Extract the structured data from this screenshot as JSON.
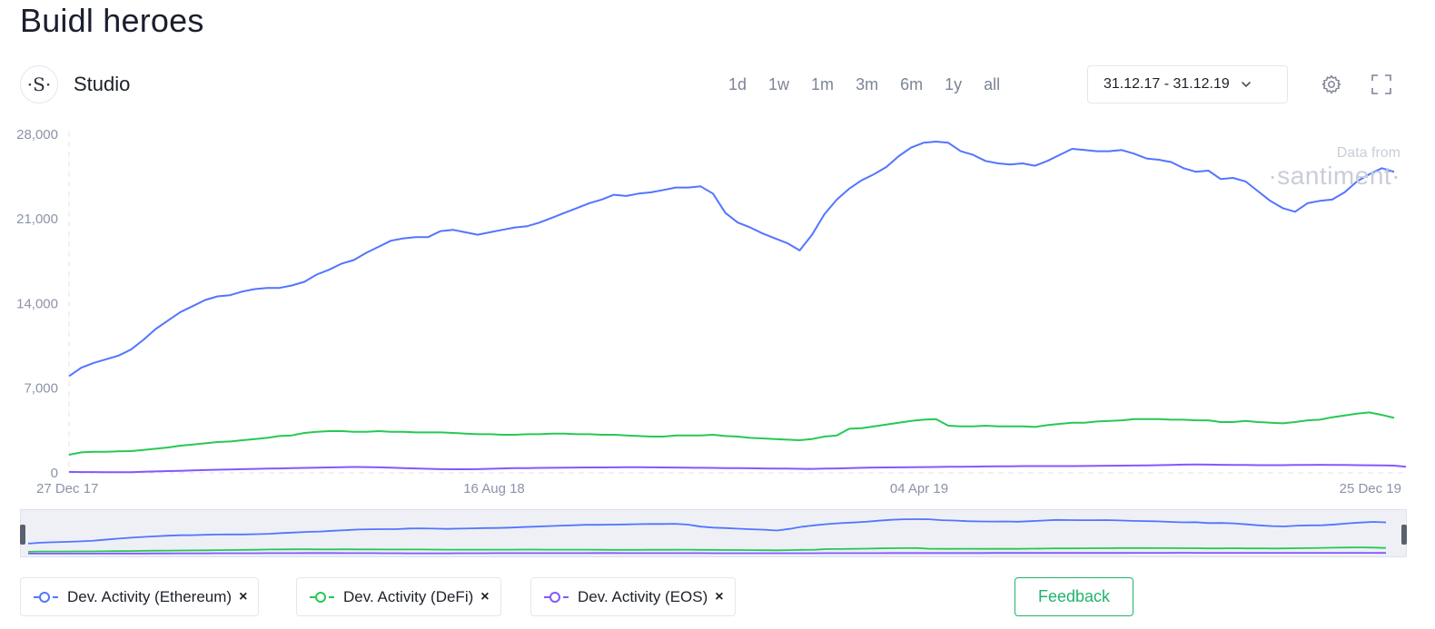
{
  "page": {
    "title": "Buidl heroes"
  },
  "studio": {
    "logo": "·S·",
    "label": "Studio"
  },
  "ranges": [
    "1d",
    "1w",
    "1m",
    "3m",
    "6m",
    "1y",
    "all"
  ],
  "date_picker": {
    "value": "31.12.17 - 31.12.19"
  },
  "toolbar": {
    "settings_icon": "gear-icon",
    "fullscreen_icon": "fullscreen-icon"
  },
  "watermark": {
    "line1": "Data from",
    "line2": "·santiment·"
  },
  "legend": [
    {
      "label": "Dev. Activity (Ethereum)",
      "color": "#5275ff",
      "close": "×"
    },
    {
      "label": "Dev. Activity (DeFi)",
      "color": "#26c953",
      "close": "×"
    },
    {
      "label": "Dev. Activity (EOS)",
      "color": "#8358ff",
      "close": "×"
    }
  ],
  "feedback": {
    "label": "Feedback"
  },
  "chart_data": {
    "type": "line",
    "x_labels": [
      "27 Dec 17",
      "16 Aug 18",
      "04 Apr 19",
      "25 Dec 19"
    ],
    "x_range": [
      "2017-12-27",
      "2019-12-31"
    ],
    "y_ticks": [
      0,
      7000,
      14000,
      21000,
      28000
    ],
    "y_tick_labels": [
      "0",
      "7,000",
      "14,000",
      "21,000",
      "28,000"
    ],
    "ylim": [
      0,
      28600
    ],
    "grid": false,
    "series": [
      {
        "name": "Dev. Activity (Ethereum)",
        "color": "#5275ff",
        "values": [
          8000,
          8700,
          9100,
          9400,
          9700,
          10200,
          11000,
          11900,
          12600,
          13300,
          13800,
          14300,
          14600,
          14700,
          15000,
          15200,
          15300,
          15300,
          15500,
          15800,
          16400,
          16800,
          17300,
          17600,
          18200,
          18700,
          19200,
          19400,
          19500,
          19500,
          20000,
          20100,
          19900,
          19700,
          19900,
          20100,
          20300,
          20400,
          20700,
          21100,
          21500,
          21900,
          22300,
          22600,
          23000,
          22900,
          23100,
          23200,
          23400,
          23600,
          23600,
          23700,
          23100,
          21500,
          20700,
          20300,
          19800,
          19400,
          19000,
          18400,
          19700,
          21400,
          22600,
          23500,
          24200,
          24700,
          25300,
          26200,
          26900,
          27300,
          27400,
          27300,
          26600,
          26300,
          25800,
          25600,
          25500,
          25600,
          25400,
          25800,
          26300,
          26800,
          26700,
          26600,
          26600,
          26700,
          26400,
          26000,
          25900,
          25700,
          25200,
          24900,
          25000,
          24300,
          24400,
          24100,
          23300,
          22500,
          21900,
          21600,
          22300,
          22500,
          22600,
          23200,
          24100,
          24700,
          25200,
          24900
        ]
      },
      {
        "name": "Dev. Activity (DeFi)",
        "color": "#26c953",
        "values": [
          1500,
          1700,
          1750,
          1750,
          1780,
          1800,
          1900,
          2000,
          2100,
          2250,
          2350,
          2450,
          2550,
          2600,
          2700,
          2800,
          2900,
          3050,
          3100,
          3300,
          3400,
          3450,
          3450,
          3400,
          3400,
          3450,
          3400,
          3400,
          3350,
          3350,
          3350,
          3300,
          3250,
          3200,
          3200,
          3150,
          3150,
          3200,
          3200,
          3250,
          3250,
          3200,
          3200,
          3150,
          3150,
          3100,
          3050,
          3000,
          3000,
          3100,
          3100,
          3100,
          3150,
          3050,
          3000,
          2900,
          2850,
          2800,
          2750,
          2700,
          2800,
          3000,
          3100,
          3650,
          3700,
          3850,
          4000,
          4150,
          4300,
          4400,
          4450,
          3900,
          3850,
          3850,
          3900,
          3850,
          3850,
          3850,
          3800,
          3950,
          4050,
          4150,
          4150,
          4250,
          4300,
          4350,
          4450,
          4450,
          4450,
          4400,
          4400,
          4350,
          4350,
          4200,
          4200,
          4300,
          4200,
          4150,
          4100,
          4200,
          4350,
          4400,
          4600,
          4750,
          4900,
          5000,
          4800,
          4550
        ]
      },
      {
        "name": "Dev. Activity (EOS)",
        "color": "#8358ff",
        "values": [
          80,
          70,
          70,
          60,
          60,
          60,
          90,
          120,
          150,
          170,
          200,
          230,
          260,
          280,
          310,
          330,
          350,
          370,
          390,
          410,
          430,
          450,
          470,
          490,
          480,
          460,
          430,
          400,
          370,
          340,
          310,
          300,
          300,
          310,
          340,
          370,
          390,
          400,
          410,
          420,
          430,
          440,
          450,
          450,
          460,
          470,
          470,
          460,
          450,
          440,
          430,
          420,
          410,
          400,
          390,
          380,
          370,
          360,
          350,
          340,
          330,
          350,
          370,
          400,
          420,
          440,
          450,
          460,
          470,
          480,
          490,
          500,
          510,
          520,
          530,
          540,
          550,
          560,
          560,
          560,
          560,
          560,
          570,
          580,
          590,
          600,
          610,
          620,
          640,
          660,
          680,
          690,
          680,
          670,
          660,
          650,
          640,
          640,
          640,
          650,
          660,
          670,
          660,
          650,
          640,
          630,
          620,
          600
        ]
      }
    ],
    "navigator": true
  }
}
